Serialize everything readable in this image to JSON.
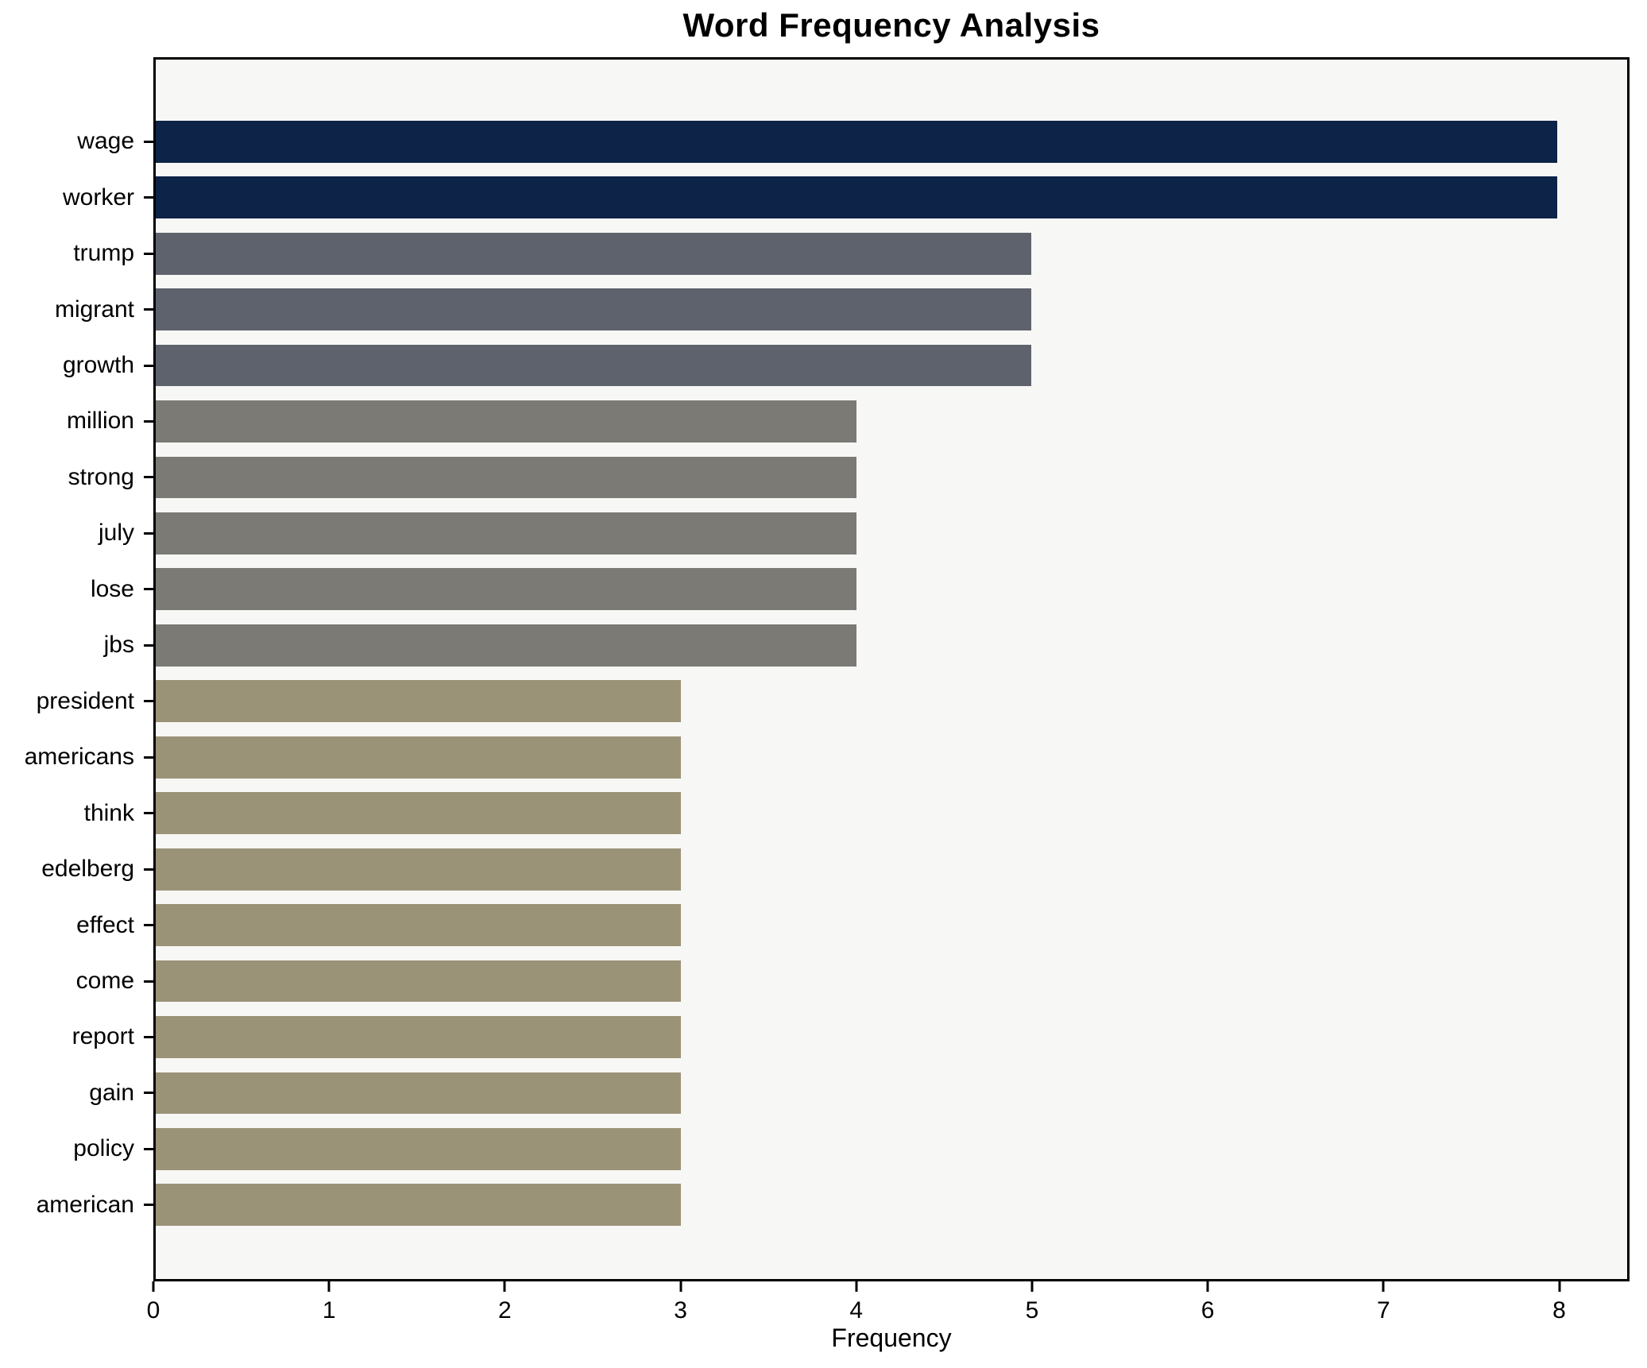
{
  "figure": {
    "background_color": "#ffffff",
    "plot_background_color": "#f7f7f5",
    "axis_color": "#000000"
  },
  "chart_data": {
    "type": "bar",
    "orientation": "horizontal",
    "title": "Word Frequency Analysis",
    "xlabel": "Frequency",
    "ylabel": "",
    "grid": false,
    "legend": null,
    "xlim": [
      0,
      8.4
    ],
    "x_ticks": [
      0,
      1,
      2,
      3,
      4,
      5,
      6,
      7,
      8
    ],
    "categories": [
      "wage",
      "worker",
      "trump",
      "migrant",
      "growth",
      "million",
      "strong",
      "july",
      "lose",
      "jbs",
      "president",
      "americans",
      "think",
      "edelberg",
      "effect",
      "come",
      "report",
      "gain",
      "policy",
      "american"
    ],
    "values": [
      8,
      8,
      5,
      5,
      5,
      4,
      4,
      4,
      4,
      4,
      3,
      3,
      3,
      3,
      3,
      3,
      3,
      3,
      3,
      3
    ],
    "bar_colors": [
      "#0d2347",
      "#0d2347",
      "#5e626c",
      "#5e626c",
      "#5e626c",
      "#7b7a75",
      "#7b7a75",
      "#7b7a75",
      "#7b7a75",
      "#7b7a75",
      "#9b9377",
      "#9b9377",
      "#9b9377",
      "#9b9377",
      "#9b9377",
      "#9b9377",
      "#9b9377",
      "#9b9377",
      "#9b9377",
      "#9b9377"
    ]
  }
}
